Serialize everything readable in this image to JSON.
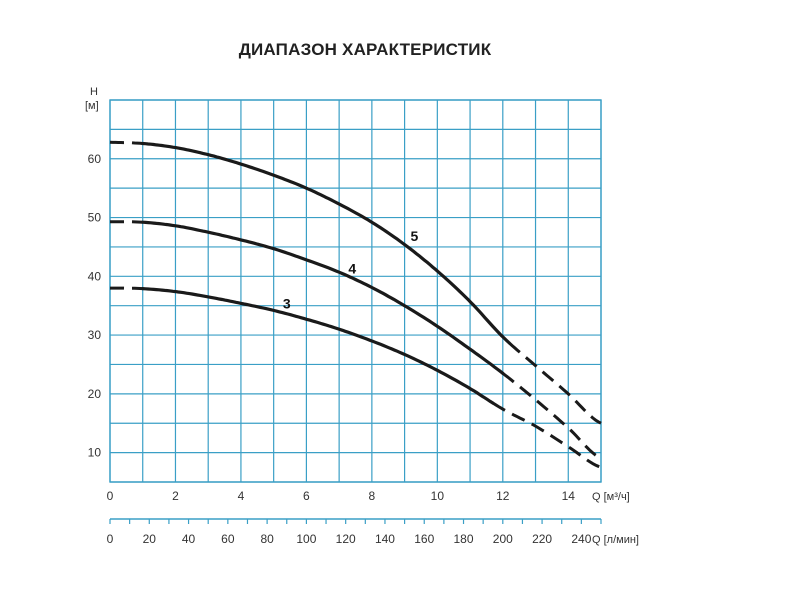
{
  "chart_data": {
    "type": "line",
    "title": "ДИАПАЗОН ХАРАКТЕРИСТИК",
    "ylabel_top": "H",
    "ylabel_unit": "[м]",
    "xlabel": "Q [м³/ч]",
    "xlabel2": "Q [л/мин]",
    "xlim": [
      0,
      15
    ],
    "ylim": [
      5,
      70
    ],
    "x_ticks": [
      "0",
      "2",
      "4",
      "6",
      "8",
      "10",
      "12",
      "14"
    ],
    "y_ticks": [
      "10",
      "20",
      "30",
      "40",
      "50",
      "60"
    ],
    "x2_ticks": [
      "0",
      "20",
      "40",
      "60",
      "80",
      "100",
      "120",
      "140",
      "160",
      "180",
      "200",
      "220",
      "240"
    ],
    "grid": true,
    "colors": {
      "grid": "#3a9fc6",
      "curve": "#1a1a1a",
      "text": "#333333"
    },
    "series": [
      {
        "name": "3",
        "x": [
          0,
          1,
          2,
          3,
          4,
          5,
          6,
          7,
          8,
          9,
          10,
          11,
          12,
          13,
          14,
          15
        ],
        "y": [
          38,
          37.9,
          37.4,
          36.5,
          35.4,
          34.2,
          32.7,
          31.0,
          29.0,
          26.7,
          24.0,
          20.9,
          17.4,
          14.5,
          11.0,
          7.5
        ],
        "dashed_until": 1,
        "dashed_from": 11.7
      },
      {
        "name": "4",
        "x": [
          0,
          1,
          2,
          3,
          4,
          5,
          6,
          7,
          8,
          9,
          10,
          11,
          12,
          13,
          14,
          15
        ],
        "y": [
          49.3,
          49.2,
          48.6,
          47.5,
          46.2,
          44.7,
          42.8,
          40.7,
          38.1,
          35.0,
          31.5,
          27.6,
          23.5,
          19.0,
          14.2,
          9.0
        ],
        "dashed_until": 1,
        "dashed_from": 12.0
      },
      {
        "name": "5",
        "x": [
          0,
          1,
          2,
          3,
          4,
          5,
          6,
          7,
          8,
          9,
          10,
          11,
          12,
          13,
          14,
          15
        ],
        "y": [
          62.8,
          62.6,
          61.9,
          60.7,
          59.1,
          57.2,
          55.0,
          52.3,
          49.2,
          45.4,
          40.9,
          35.7,
          29.7,
          24.8,
          20.0,
          15.0
        ],
        "dashed_until": 1,
        "dashed_from": 12.2
      }
    ],
    "curve_labels": [
      {
        "text": "3",
        "x": 5.4,
        "y": 34.5
      },
      {
        "text": "4",
        "x": 7.4,
        "y": 40.5
      },
      {
        "text": "5",
        "x": 9.3,
        "y": 46.0
      }
    ]
  }
}
